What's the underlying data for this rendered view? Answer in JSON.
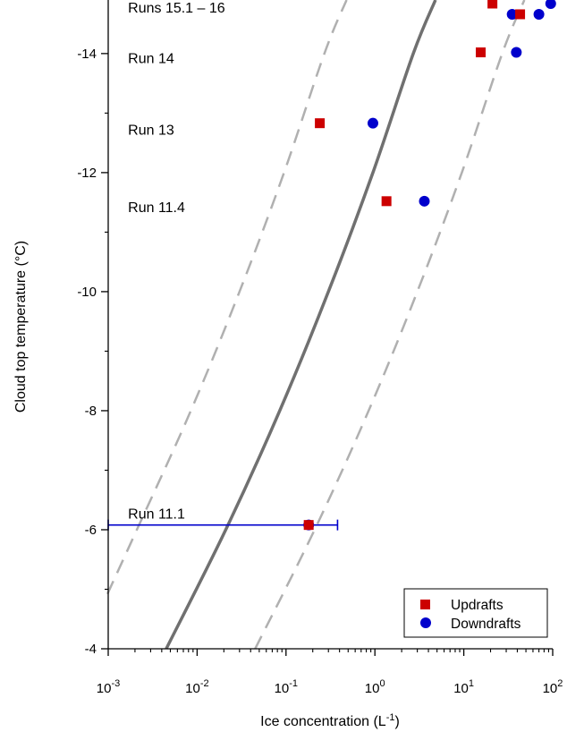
{
  "chart_data": {
    "type": "scatter",
    "xlabel": "Ice concentration (L",
    "xlabel_sup": "-1",
    "xlabel_close": ")",
    "ylabel": "Cloud top temperature (°C)",
    "xscale": "log",
    "xlim": [
      0.001,
      100
    ],
    "ylim": [
      -4,
      -14.9
    ],
    "y_inverted": true,
    "x_ticks": [
      {
        "value": 0.001,
        "base": "10",
        "exp": "-3"
      },
      {
        "value": 0.01,
        "base": "10",
        "exp": "-2"
      },
      {
        "value": 0.1,
        "base": "10",
        "exp": "-1"
      },
      {
        "value": 1,
        "base": "10",
        "exp": "0"
      },
      {
        "value": 10,
        "base": "10",
        "exp": "1"
      },
      {
        "value": 100,
        "base": "10",
        "exp": "2"
      }
    ],
    "y_ticks": [
      {
        "value": -4,
        "label": "-4"
      },
      {
        "value": -6,
        "label": "-6"
      },
      {
        "value": -8,
        "label": "-8"
      },
      {
        "value": -10,
        "label": "-10"
      },
      {
        "value": -12,
        "label": "-12"
      },
      {
        "value": -14,
        "label": "-14"
      }
    ],
    "grid": false,
    "legend_position": "bottom-right",
    "series": [
      {
        "name": "Updrafts",
        "marker": "square",
        "color": "#cc0000",
        "points": [
          {
            "x": 0.18,
            "y": -6.08
          },
          {
            "x": 1.35,
            "y": -11.52
          },
          {
            "x": 0.24,
            "y": -12.83
          },
          {
            "x": 15.5,
            "y": -14.02
          },
          {
            "x": 43,
            "y": -14.66
          },
          {
            "x": 21,
            "y": -14.84
          }
        ]
      },
      {
        "name": "Downdrafts",
        "marker": "circle",
        "color": "#0000cc",
        "points": [
          {
            "x": 0.18,
            "y": -6.08
          },
          {
            "x": 3.6,
            "y": -11.52
          },
          {
            "x": 0.95,
            "y": -12.83
          },
          {
            "x": 39,
            "y": -14.02
          },
          {
            "x": 35,
            "y": -14.66
          },
          {
            "x": 70,
            "y": -14.66
          },
          {
            "x": 95,
            "y": -14.84
          }
        ]
      }
    ],
    "error_bars": [
      {
        "color": "#0000cc",
        "y": -6.08,
        "x_low": 0.001,
        "x_high": 0.38
      }
    ],
    "curves": [
      {
        "style": "solid",
        "color": "#707070",
        "points": [
          {
            "x": 0.0045,
            "y": -4
          },
          {
            "x": 0.021,
            "y": -6
          },
          {
            "x": 0.085,
            "y": -8
          },
          {
            "x": 0.3,
            "y": -10
          },
          {
            "x": 0.95,
            "y": -12
          },
          {
            "x": 2.7,
            "y": -14
          },
          {
            "x": 4.8,
            "y": -14.9
          }
        ]
      },
      {
        "style": "dashed",
        "color": "#b0b0b0",
        "points": [
          {
            "x": 0.00098,
            "y": -4.92
          },
          {
            "x": 0.0021,
            "y": -6
          },
          {
            "x": 0.0085,
            "y": -8
          },
          {
            "x": 0.03,
            "y": -10
          },
          {
            "x": 0.095,
            "y": -12
          },
          {
            "x": 0.27,
            "y": -14
          },
          {
            "x": 0.48,
            "y": -14.9
          }
        ]
      },
      {
        "style": "dashed",
        "color": "#b0b0b0",
        "points": [
          {
            "x": 0.045,
            "y": -4
          },
          {
            "x": 0.21,
            "y": -6
          },
          {
            "x": 0.85,
            "y": -8
          },
          {
            "x": 3.0,
            "y": -10
          },
          {
            "x": 9.5,
            "y": -12
          },
          {
            "x": 27,
            "y": -14
          },
          {
            "x": 48,
            "y": -14.9
          }
        ]
      }
    ],
    "annotations": [
      {
        "text": "Runs 15.1 – 16",
        "x": 0.00118,
        "y": -14.9
      },
      {
        "text": "Run 14",
        "x": 0.00118,
        "y": -14.05
      },
      {
        "text": "Run 13",
        "x": 0.00118,
        "y": -12.85
      },
      {
        "text": "Run 11.4",
        "x": 0.00118,
        "y": -11.55
      },
      {
        "text": "Run 11.1",
        "x": 0.00118,
        "y": -6.4
      }
    ]
  }
}
